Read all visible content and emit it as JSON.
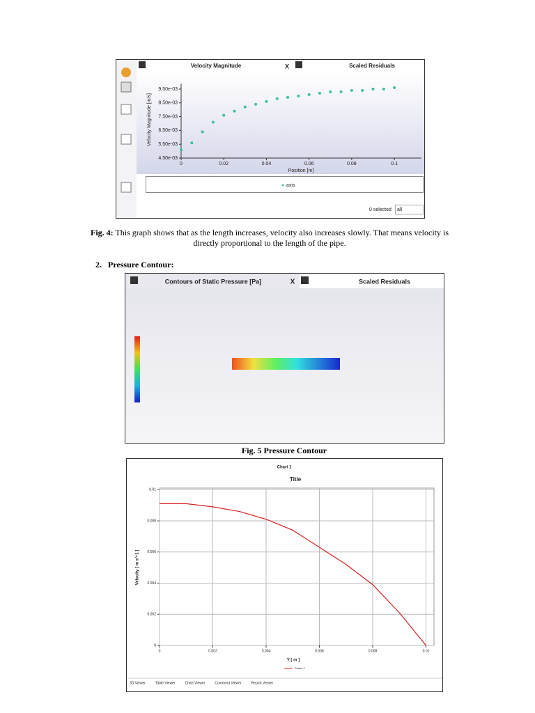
{
  "chart_data": [
    {
      "type": "scatter",
      "tabs": [
        "Velocity Magnitude",
        "Scaled Residuals"
      ],
      "close_tab": "X",
      "y_label": "Velocity Magnitude [m/s]",
      "x_label": "Position [m]",
      "x": [
        0,
        0.005,
        0.01,
        0.015,
        0.02,
        0.025,
        0.03,
        0.035,
        0.04,
        0.045,
        0.05,
        0.055,
        0.06,
        0.065,
        0.07,
        0.075,
        0.08,
        0.085,
        0.09,
        0.095,
        0.1
      ],
      "series": [
        {
          "name": "axis",
          "color": "#3cbf9c",
          "values": [
            0.0051,
            0.0056,
            0.0064,
            0.0071,
            0.0076,
            0.0079,
            0.0082,
            0.0084,
            0.0086,
            0.0088,
            0.0089,
            0.009,
            0.0091,
            0.0092,
            0.0093,
            0.0093,
            0.0094,
            0.0094,
            0.0095,
            0.0095,
            0.0096
          ]
        }
      ],
      "xlim": [
        0,
        0.1127
      ],
      "ylim": [
        0.0045,
        0.0099
      ],
      "xticks": [
        0,
        0.02,
        0.04,
        0.06,
        0.08,
        0.1
      ],
      "yticks": [
        {
          "value": 0.0045,
          "label": "4.50e-03"
        },
        {
          "value": 0.0055,
          "label": "5.50e-03"
        },
        {
          "value": 0.0065,
          "label": "6.50e-03"
        },
        {
          "value": 0.0075,
          "label": "7.50e-03"
        },
        {
          "value": 0.0085,
          "label": "8.50e-03"
        },
        {
          "value": 0.0095,
          "label": "9.50e-03"
        }
      ],
      "grid": false,
      "selection": "0 selected",
      "filter": "all"
    },
    {
      "type": "line",
      "chart_name": "Chart 1",
      "title": "Title",
      "y_label": "Velocity [ m s^-1 ]",
      "x_label": "Y [ m ]",
      "x": [
        0,
        0.001,
        0.002,
        0.003,
        0.004,
        0.005,
        0.006,
        0.007,
        0.008,
        0.009,
        0.01
      ],
      "series": [
        {
          "name": "Series 1",
          "color": "#d42020",
          "values": [
            0.0091,
            0.0091,
            0.0089,
            0.0086,
            0.0081,
            0.0074,
            0.0063,
            0.0052,
            0.0039,
            0.0021,
            0
          ]
        }
      ],
      "xlim": [
        0,
        0.0103
      ],
      "ylim": [
        0,
        0.0101
      ],
      "xticks": [
        0,
        0.002,
        0.004,
        0.006,
        0.008,
        0.01
      ],
      "yticks": [
        0,
        0.002,
        0.004,
        0.006,
        0.008,
        0.01
      ],
      "grid": true,
      "bottom_tabs": [
        "3D Viewer",
        "Table Viewer",
        "Chart Viewer",
        "Comment Viewer",
        "Report Viewer"
      ]
    }
  ],
  "captions": [
    {
      "label": "Fig. 4:",
      "text": "This graph shows that as the length increases, velocity also increases slowly. That means velocity is directly proportional to the length of the pipe."
    },
    {
      "text": "Fig. 5 Pressure Contour"
    }
  ],
  "heading": {
    "number": "2.",
    "text": "Pressure Contour:"
  },
  "contour": {
    "tabs": [
      "Contours of Static Pressure [Pa]",
      "Scaled Residuals"
    ],
    "close_tab": "X"
  }
}
